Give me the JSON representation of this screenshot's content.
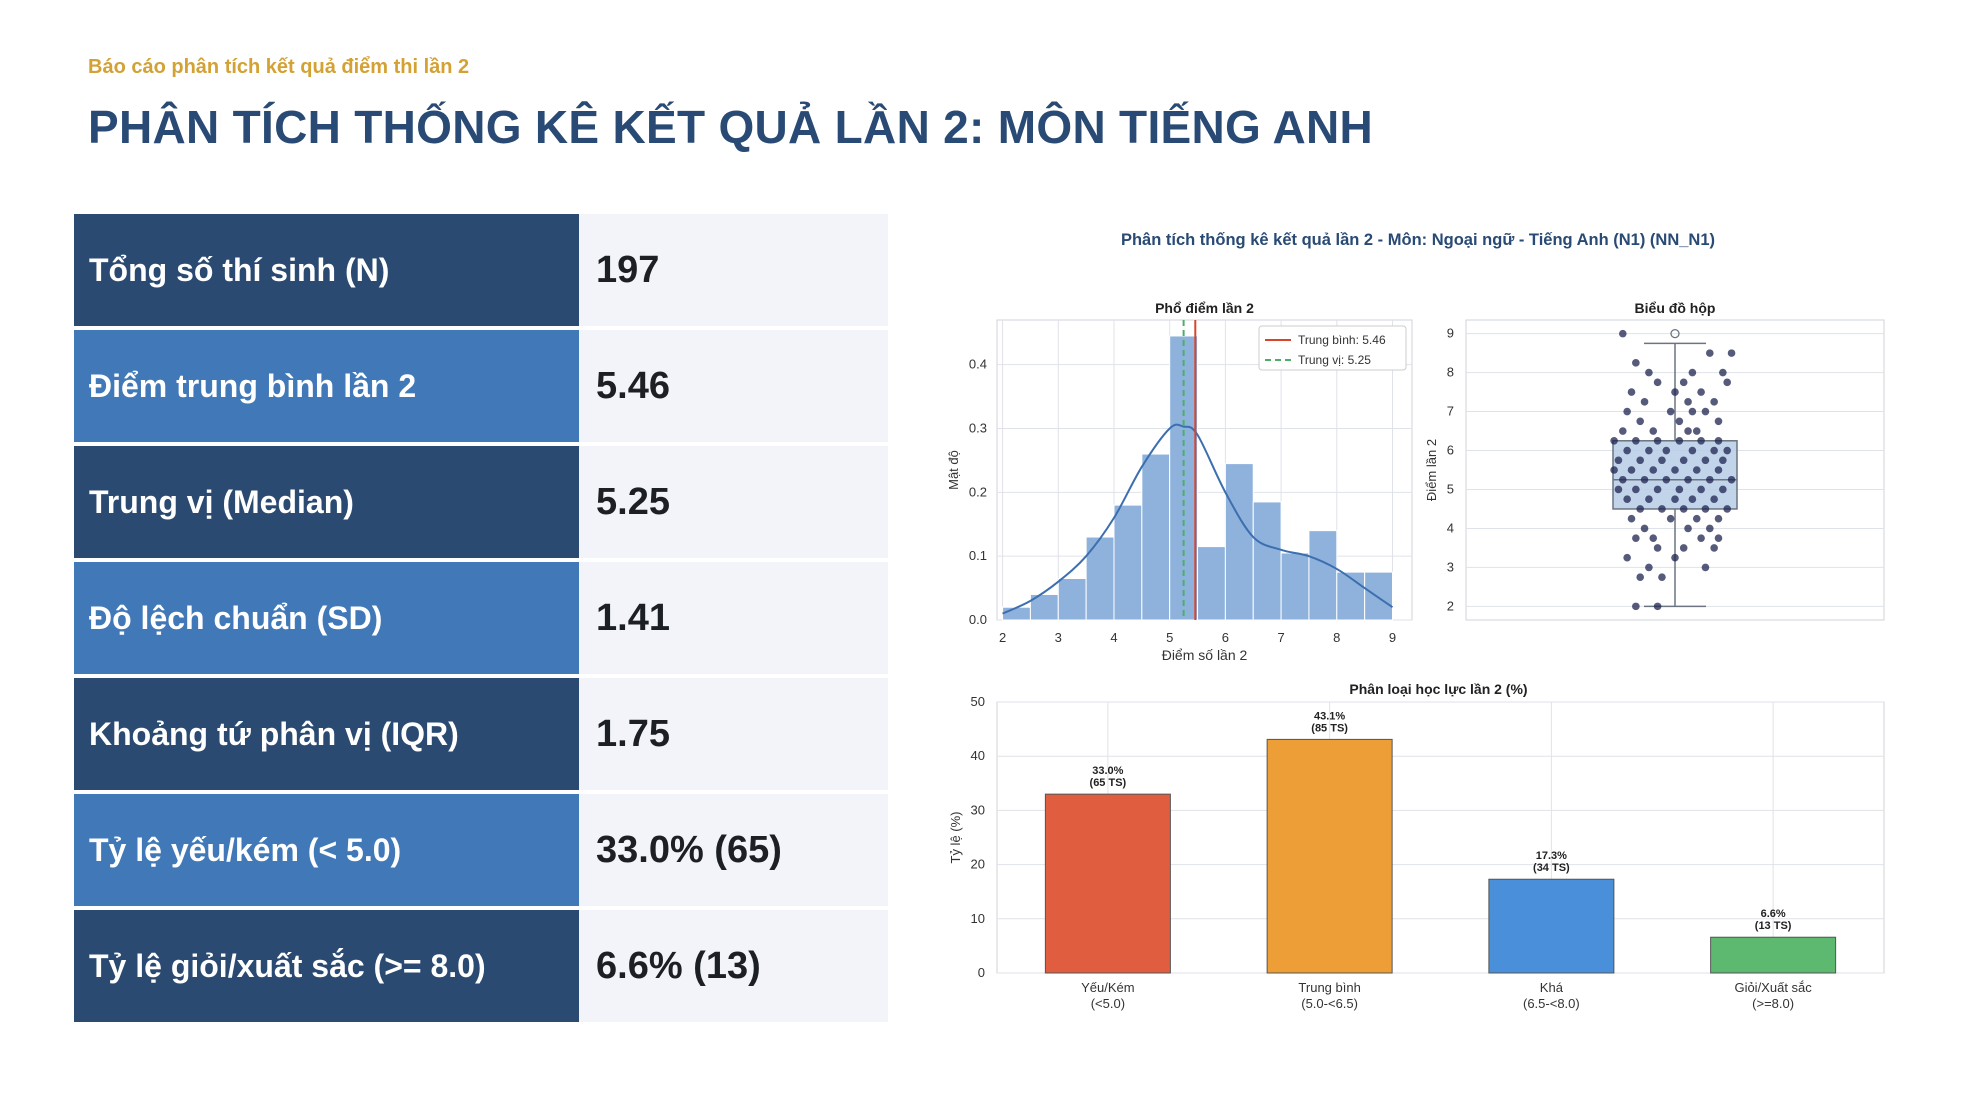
{
  "header": {
    "subtitle": "Báo cáo phân tích kết quả điểm thi lần 2",
    "title": "PHÂN TÍCH THỐNG KÊ KẾT QUẢ LẦN 2: MÔN TIẾNG ANH"
  },
  "stats": [
    {
      "label": "Tổng số thí sinh (N)",
      "value": "197"
    },
    {
      "label": "Điểm trung bình lần 2",
      "value": "5.46"
    },
    {
      "label": "Trung vị (Median)",
      "value": "5.25"
    },
    {
      "label": "Độ lệch chuẩn (SD)",
      "value": "1.41"
    },
    {
      "label": "Khoảng tứ phân vị (IQR)",
      "value": "1.75"
    },
    {
      "label": "Tỷ lệ yếu/kém (< 5.0)",
      "value": "33.0% (65)"
    },
    {
      "label": "Tỷ lệ giỏi/xuất sắc (>= 8.0)",
      "value": "6.6% (13)"
    }
  ],
  "figure_title": "Phân tích thống kê kết quả lần 2 - Môn: Ngoại ngữ - Tiếng Anh (N1) (NN_N1)",
  "chart_data": [
    {
      "type": "bar",
      "title": "Phổ điểm lần 2",
      "xlabel": "Điểm số lần 2",
      "ylabel": "Mật độ",
      "xlim": [
        1.9,
        9.35
      ],
      "ylim": [
        0,
        0.47
      ],
      "xticks": [
        2,
        3,
        4,
        5,
        6,
        7,
        8,
        9
      ],
      "yticks": [
        0.0,
        0.1,
        0.2,
        0.3,
        0.4
      ],
      "bin_edges": [
        2.0,
        2.5,
        3.0,
        3.5,
        4.0,
        4.5,
        5.0,
        5.5,
        6.0,
        6.5,
        7.0,
        7.5,
        8.0,
        8.5,
        9.0
      ],
      "density": [
        0.02,
        0.04,
        0.065,
        0.13,
        0.18,
        0.26,
        0.445,
        0.115,
        0.245,
        0.185,
        0.105,
        0.14,
        0.075,
        0.075
      ],
      "kde_x": [
        2.0,
        2.5,
        3.0,
        3.5,
        4.0,
        4.5,
        5.0,
        5.25,
        5.5,
        6.0,
        6.5,
        7.0,
        7.5,
        8.0,
        8.5,
        9.0
      ],
      "kde_y": [
        0.01,
        0.03,
        0.06,
        0.1,
        0.16,
        0.24,
        0.3,
        0.303,
        0.29,
        0.2,
        0.13,
        0.11,
        0.1,
        0.08,
        0.05,
        0.02
      ],
      "mean": 5.46,
      "median": 5.25,
      "legend": [
        {
          "label": "Trung bình: 5.46",
          "color": "#d9452b",
          "style": "solid"
        },
        {
          "label": "Trung vị: 5.25",
          "color": "#4cae6a",
          "style": "dashed"
        }
      ],
      "legend_position": "top-right",
      "grid": true
    },
    {
      "type": "box",
      "title": "Biểu đồ hộp",
      "ylabel": "Điểm lần 2",
      "ylim": [
        1.65,
        9.35
      ],
      "yticks": [
        2,
        3,
        4,
        5,
        6,
        7,
        8,
        9
      ],
      "box": {
        "min": 2.0,
        "q1": 4.5,
        "median": 5.25,
        "q3": 6.25,
        "max": 8.75,
        "outliers": [
          9.0
        ]
      },
      "points": [
        {
          "y": 9.0,
          "j": -0.6
        },
        {
          "y": 8.5,
          "j": 0.4
        },
        {
          "y": 8.5,
          "j": 0.65
        },
        {
          "y": 8.25,
          "j": -0.45
        },
        {
          "y": 8.0,
          "j": 0.55
        },
        {
          "y": 8.0,
          "j": 0.2
        },
        {
          "y": 8.0,
          "j": -0.3
        },
        {
          "y": 7.75,
          "j": 0.6
        },
        {
          "y": 7.75,
          "j": -0.2
        },
        {
          "y": 7.75,
          "j": 0.1
        },
        {
          "y": 7.5,
          "j": -0.5
        },
        {
          "y": 7.5,
          "j": 0.3
        },
        {
          "y": 7.5,
          "j": 0.0
        },
        {
          "y": 7.25,
          "j": -0.35
        },
        {
          "y": 7.25,
          "j": 0.45
        },
        {
          "y": 7.25,
          "j": 0.15
        },
        {
          "y": 7.0,
          "j": -0.55
        },
        {
          "y": 7.0,
          "j": -0.05
        },
        {
          "y": 7.0,
          "j": 0.35
        },
        {
          "y": 7.0,
          "j": 0.2
        },
        {
          "y": 6.75,
          "j": -0.4
        },
        {
          "y": 6.75,
          "j": 0.05
        },
        {
          "y": 6.75,
          "j": 0.5
        },
        {
          "y": 6.5,
          "j": -0.25
        },
        {
          "y": 6.5,
          "j": 0.25
        },
        {
          "y": 6.5,
          "j": -0.6
        },
        {
          "y": 6.5,
          "j": 0.15
        },
        {
          "y": 6.25,
          "j": -0.7
        },
        {
          "y": 6.25,
          "j": -0.2
        },
        {
          "y": 6.25,
          "j": 0.3
        },
        {
          "y": 6.25,
          "j": -0.45
        },
        {
          "y": 6.25,
          "j": 0.05
        },
        {
          "y": 6.25,
          "j": 0.5
        },
        {
          "y": 6.0,
          "j": -0.55
        },
        {
          "y": 6.0,
          "j": -0.1
        },
        {
          "y": 6.0,
          "j": 0.2
        },
        {
          "y": 6.0,
          "j": 0.45
        },
        {
          "y": 6.0,
          "j": -0.3
        },
        {
          "y": 6.0,
          "j": 0.6
        },
        {
          "y": 5.75,
          "j": -0.65
        },
        {
          "y": 5.75,
          "j": -0.15
        },
        {
          "y": 5.75,
          "j": 0.1
        },
        {
          "y": 5.75,
          "j": 0.35
        },
        {
          "y": 5.75,
          "j": -0.4
        },
        {
          "y": 5.75,
          "j": 0.55
        },
        {
          "y": 5.5,
          "j": -0.5
        },
        {
          "y": 5.5,
          "j": 0.0
        },
        {
          "y": 5.5,
          "j": 0.25
        },
        {
          "y": 5.5,
          "j": -0.25
        },
        {
          "y": 5.5,
          "j": 0.5
        },
        {
          "y": 5.5,
          "j": -0.7
        },
        {
          "y": 5.25,
          "j": -0.35
        },
        {
          "y": 5.25,
          "j": 0.15
        },
        {
          "y": 5.25,
          "j": 0.4
        },
        {
          "y": 5.25,
          "j": -0.6
        },
        {
          "y": 5.25,
          "j": 0.65
        },
        {
          "y": 5.25,
          "j": -0.1
        },
        {
          "y": 5.0,
          "j": -0.45
        },
        {
          "y": 5.0,
          "j": 0.05
        },
        {
          "y": 5.0,
          "j": 0.3
        },
        {
          "y": 5.0,
          "j": -0.2
        },
        {
          "y": 5.0,
          "j": 0.55
        },
        {
          "y": 5.0,
          "j": -0.65
        },
        {
          "y": 4.75,
          "j": -0.3
        },
        {
          "y": 4.75,
          "j": 0.2
        },
        {
          "y": 4.75,
          "j": 0.45
        },
        {
          "y": 4.75,
          "j": -0.55
        },
        {
          "y": 4.75,
          "j": 0.0
        },
        {
          "y": 4.5,
          "j": -0.4
        },
        {
          "y": 4.5,
          "j": 0.1
        },
        {
          "y": 4.5,
          "j": 0.35
        },
        {
          "y": 4.5,
          "j": -0.15
        },
        {
          "y": 4.5,
          "j": 0.6
        },
        {
          "y": 4.25,
          "j": -0.5
        },
        {
          "y": 4.25,
          "j": -0.05
        },
        {
          "y": 4.25,
          "j": 0.25
        },
        {
          "y": 4.25,
          "j": 0.5
        },
        {
          "y": 4.0,
          "j": -0.35
        },
        {
          "y": 4.0,
          "j": 0.15
        },
        {
          "y": 4.0,
          "j": 0.4
        },
        {
          "y": 3.75,
          "j": -0.25
        },
        {
          "y": 3.75,
          "j": 0.3
        },
        {
          "y": 3.75,
          "j": -0.45
        },
        {
          "y": 3.75,
          "j": 0.5
        },
        {
          "y": 3.5,
          "j": -0.2
        },
        {
          "y": 3.5,
          "j": 0.1
        },
        {
          "y": 3.5,
          "j": 0.45
        },
        {
          "y": 3.25,
          "j": -0.55
        },
        {
          "y": 3.25,
          "j": 0.0
        },
        {
          "y": 3.0,
          "j": -0.3
        },
        {
          "y": 3.0,
          "j": 0.35
        },
        {
          "y": 2.75,
          "j": -0.4
        },
        {
          "y": 2.75,
          "j": -0.15
        },
        {
          "y": 2.0,
          "j": -0.45
        },
        {
          "y": 2.0,
          "j": -0.2
        }
      ],
      "grid": true
    },
    {
      "type": "bar",
      "title": "Phân loại học lực lần 2 (%)",
      "ylabel": "Tỷ lệ (%)",
      "ylim": [
        0,
        50
      ],
      "yticks": [
        0,
        10,
        20,
        30,
        40,
        50
      ],
      "categories": [
        {
          "line1": "Yếu/Kém",
          "line2": "(<5.0)"
        },
        {
          "line1": "Trung bình",
          "line2": "(5.0-<6.5)"
        },
        {
          "line1": "Khá",
          "line2": "(6.5-<8.0)"
        },
        {
          "line1": "Giỏi/Xuất sắc",
          "line2": "(>=8.0)"
        }
      ],
      "values": [
        33.0,
        43.1,
        17.3,
        6.6
      ],
      "labels": [
        {
          "pct": "33.0%",
          "count": "(65 TS)"
        },
        {
          "pct": "43.1%",
          "count": "(85 TS)"
        },
        {
          "pct": "17.3%",
          "count": "(34 TS)"
        },
        {
          "pct": "6.6%",
          "count": "(13 TS)"
        }
      ],
      "colors": [
        "#e05e3f",
        "#ee9e36",
        "#4a8fd9",
        "#5db870"
      ],
      "grid": true
    }
  ]
}
